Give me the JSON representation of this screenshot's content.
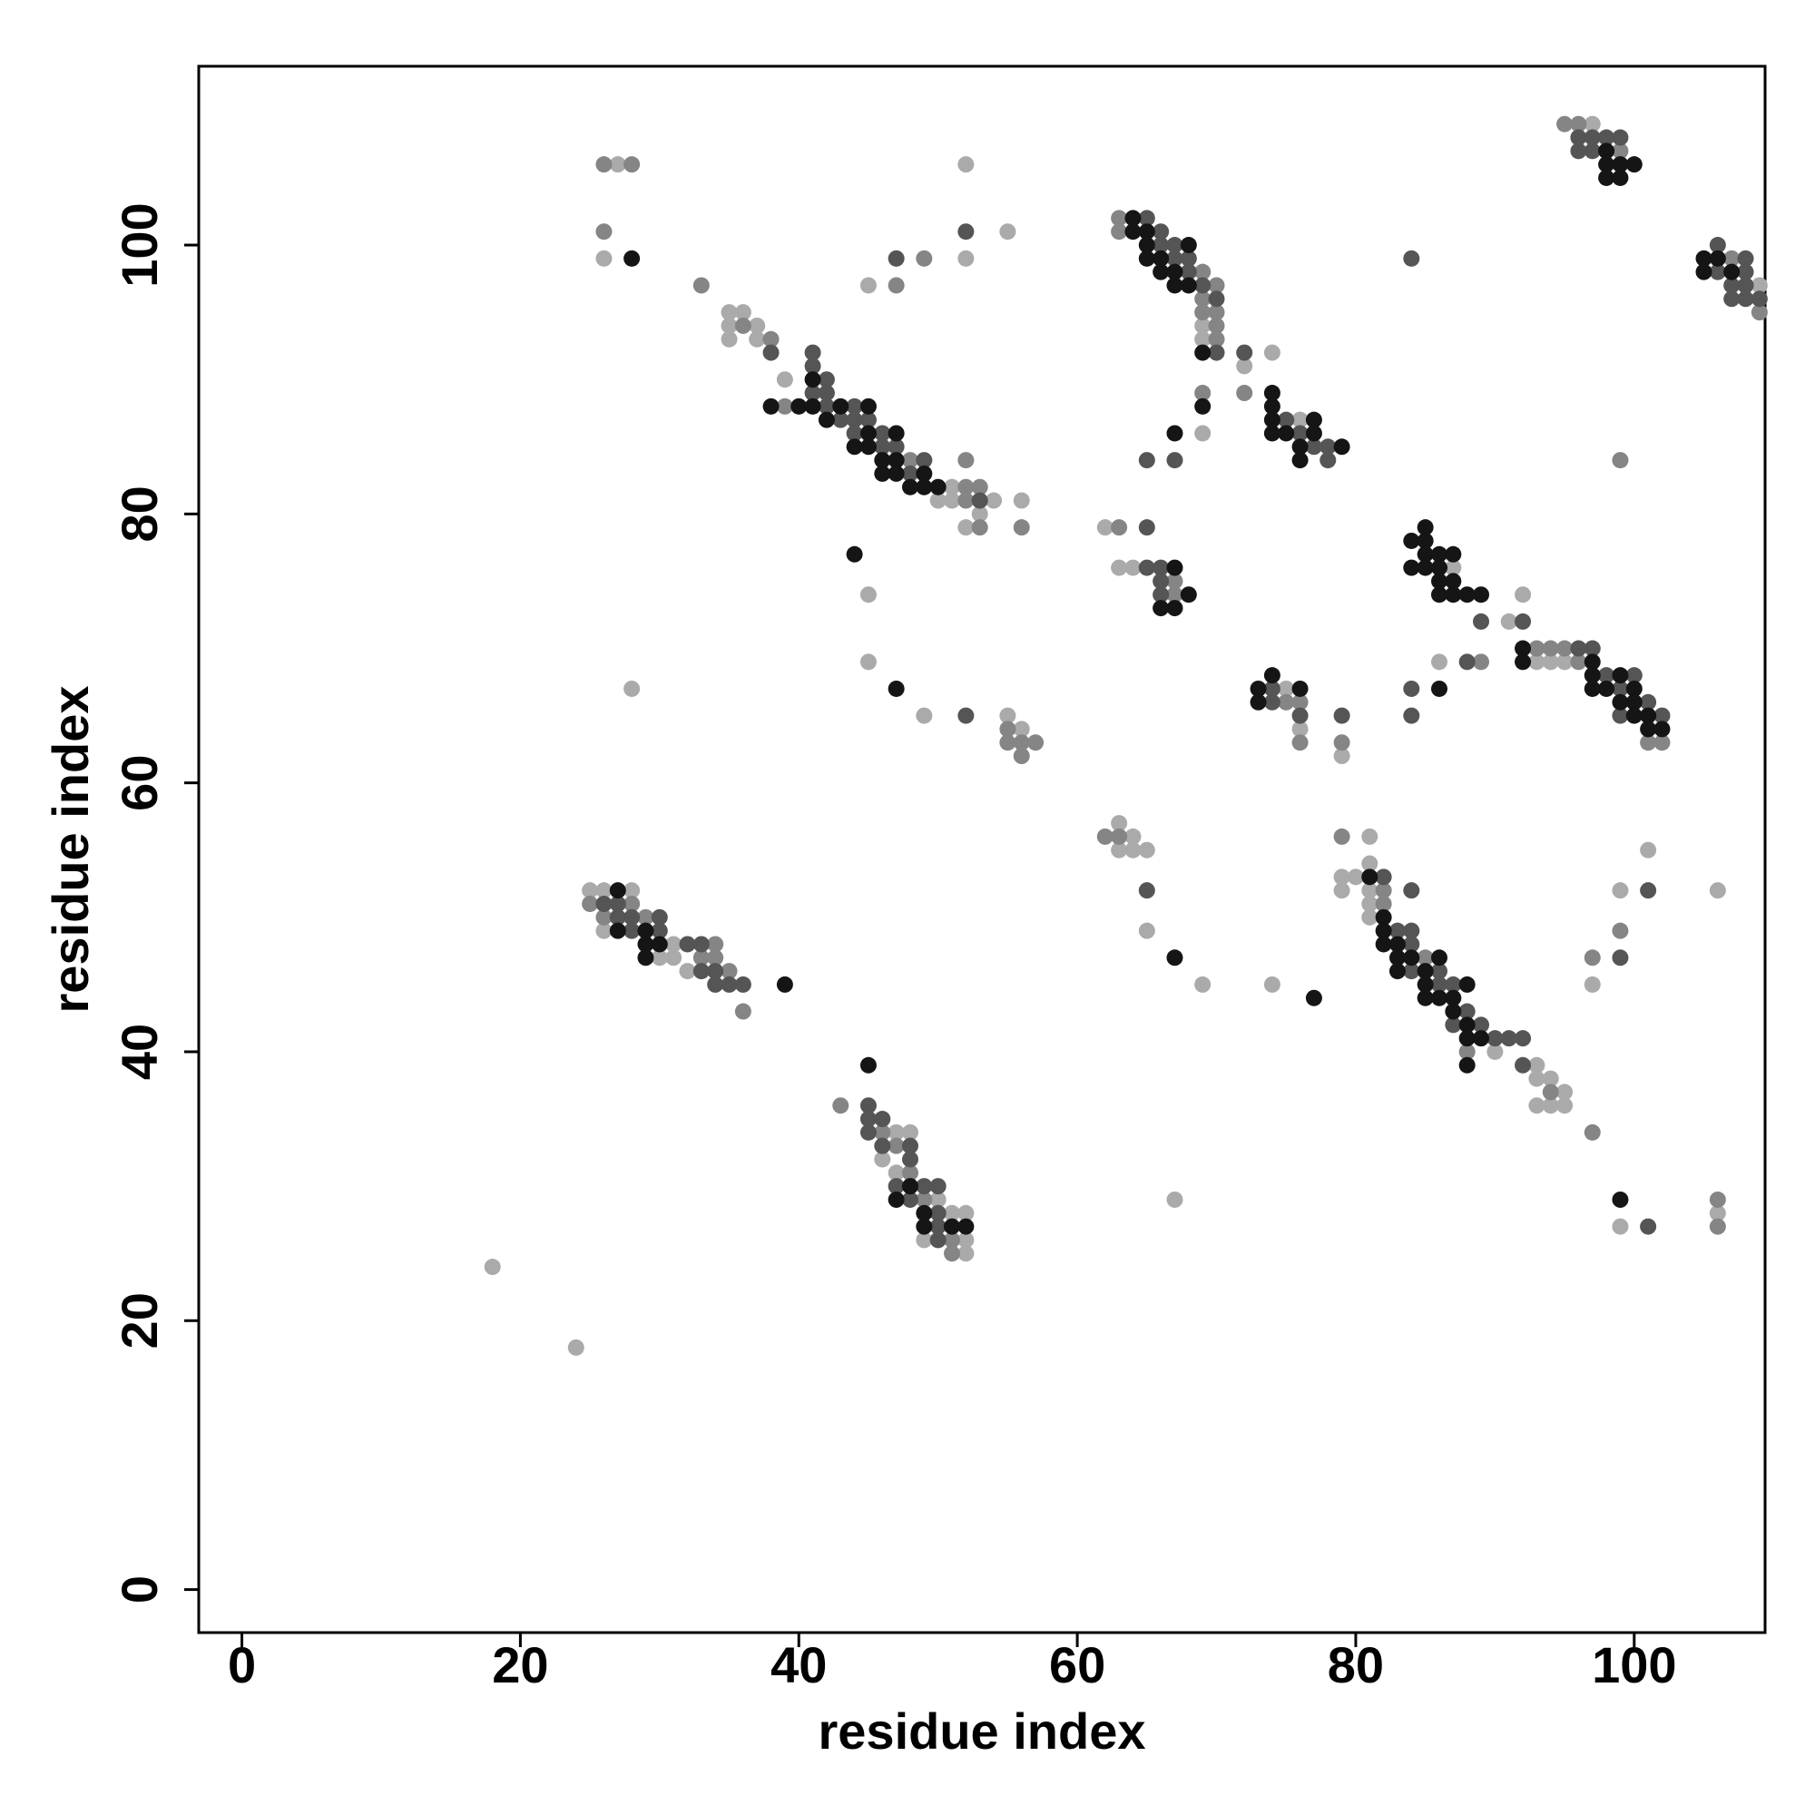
{
  "chart_data": {
    "type": "scatter",
    "x_label": "residue index",
    "y_label": "residue index",
    "xlim": [
      -3.1,
      109.4
    ],
    "ylim": [
      -3.2,
      113.3
    ],
    "xticks": [
      0,
      20,
      40,
      60,
      80,
      100
    ],
    "yticks": [
      0,
      20,
      40,
      60,
      80,
      100
    ],
    "series": [
      {
        "color": "#aaaaaa",
        "x": [
          27,
          26,
          35,
          36,
          35,
          37,
          35,
          37,
          39,
          51,
          50,
          51,
          54,
          56,
          52,
          53,
          45,
          52,
          52,
          55,
          69,
          69,
          74,
          72,
          69,
          76,
          45,
          45,
          49,
          55,
          56,
          28,
          62,
          63,
          64,
          63,
          64,
          63,
          64,
          65,
          65,
          69,
          74,
          75,
          76,
          79,
          87,
          91,
          92,
          86,
          93,
          94,
          95,
          97,
          109,
          81,
          79,
          80,
          81,
          81,
          79,
          81,
          81,
          90,
          93,
          93,
          94,
          95,
          93,
          94,
          95,
          99,
          101,
          106,
          97,
          99,
          106,
          67,
          25,
          26,
          28,
          26,
          31,
          30,
          31,
          32,
          47,
          48,
          46,
          47,
          50,
          51,
          52,
          52,
          49,
          52,
          18,
          24
        ],
        "values": [
          106,
          99,
          95,
          95,
          94,
          94,
          93,
          93,
          90,
          82,
          81,
          81,
          81,
          81,
          79,
          80,
          97,
          99,
          106,
          101,
          94,
          93,
          92,
          91,
          86,
          87,
          74,
          69,
          65,
          65,
          64,
          67,
          79,
          76,
          76,
          57,
          56,
          55,
          55,
          55,
          49,
          45,
          45,
          67,
          64,
          62,
          76,
          72,
          74,
          69,
          69,
          69,
          69,
          109,
          97,
          56,
          53,
          53,
          54,
          52,
          52,
          51,
          50,
          40,
          39,
          38,
          38,
          37,
          36,
          36,
          36,
          52,
          55,
          52,
          45,
          27,
          28,
          29,
          52,
          52,
          52,
          49,
          48,
          47,
          47,
          46,
          34,
          34,
          32,
          31,
          29,
          28,
          28,
          26,
          26,
          25,
          24,
          18
        ]
      },
      {
        "color": "#858585",
        "x": [
          26,
          28,
          26,
          33,
          36,
          38,
          39,
          52,
          53,
          52,
          52,
          53,
          56,
          47,
          49,
          63,
          63,
          69,
          70,
          69,
          69,
          70,
          70,
          70,
          69,
          72,
          99,
          55,
          55,
          56,
          57,
          56,
          63,
          67,
          67,
          62,
          63,
          75,
          76,
          76,
          79,
          89,
          93,
          94,
          95,
          96,
          101,
          102,
          95,
          96,
          99,
          107,
          109,
          79,
          82,
          82,
          85,
          88,
          94,
          97,
          97,
          99,
          106,
          106,
          25,
          28,
          26,
          29,
          34,
          33,
          34,
          35,
          36,
          43,
          46,
          47,
          48,
          49,
          51,
          51,
          48
        ],
        "values": [
          106,
          106,
          101,
          97,
          94,
          93,
          88,
          82,
          82,
          81,
          84,
          79,
          79,
          97,
          99,
          102,
          101,
          98,
          97,
          96,
          95,
          95,
          94,
          93,
          89,
          89,
          84,
          64,
          63,
          63,
          63,
          62,
          79,
          75,
          74,
          56,
          56,
          66,
          66,
          63,
          63,
          69,
          70,
          70,
          70,
          69,
          63,
          63,
          109,
          109,
          107,
          99,
          95,
          56,
          52,
          51,
          47,
          40,
          37,
          34,
          47,
          49,
          29,
          27,
          51,
          51,
          50,
          50,
          48,
          47,
          47,
          46,
          43,
          36,
          34,
          33,
          31,
          29,
          26,
          25,
          84
        ]
      },
      {
        "color": "#555555",
        "x": [
          38,
          41,
          41,
          42,
          41,
          42,
          42,
          44,
          43,
          44,
          45,
          44,
          46,
          46,
          47,
          49,
          48,
          53,
          47,
          52,
          65,
          66,
          66,
          67,
          67,
          68,
          68,
          69,
          70,
          70,
          72,
          75,
          76,
          77,
          78,
          78,
          65,
          67,
          84,
          52,
          65,
          65,
          66,
          66,
          66,
          65,
          74,
          74,
          76,
          79,
          89,
          92,
          88,
          84,
          84,
          96,
          97,
          98,
          100,
          99,
          101,
          99,
          102,
          96,
          97,
          98,
          99,
          96,
          97,
          106,
          108,
          106,
          108,
          107,
          108,
          107,
          108,
          109,
          82,
          84,
          83,
          84,
          84,
          84,
          86,
          86,
          87,
          88,
          87,
          89,
          90,
          91,
          92,
          92,
          99,
          101,
          101,
          26,
          27,
          27,
          28,
          30,
          28,
          30,
          32,
          33,
          33,
          34,
          34,
          35,
          36,
          45,
          45,
          46,
          45,
          48,
          46,
          48,
          47,
          49,
          50,
          48,
          50,
          50,
          50
        ],
        "values": [
          92,
          92,
          91,
          90,
          89,
          89,
          88,
          88,
          87,
          87,
          87,
          86,
          86,
          85,
          85,
          84,
          83,
          81,
          99,
          101,
          102,
          101,
          100,
          100,
          99,
          99,
          98,
          97,
          96,
          92,
          92,
          87,
          86,
          85,
          85,
          84,
          84,
          84,
          99,
          65,
          79,
          76,
          76,
          75,
          74,
          52,
          67,
          66,
          65,
          65,
          72,
          72,
          69,
          67,
          65,
          70,
          70,
          68,
          68,
          67,
          66,
          65,
          65,
          108,
          108,
          108,
          108,
          107,
          107,
          98,
          98,
          100,
          99,
          97,
          97,
          96,
          96,
          96,
          53,
          52,
          49,
          49,
          48,
          46,
          46,
          45,
          45,
          43,
          42,
          42,
          41,
          41,
          41,
          39,
          47,
          52,
          27,
          51,
          51,
          50,
          50,
          50,
          49,
          49,
          48,
          48,
          46,
          46,
          45,
          45,
          45,
          36,
          35,
          35,
          34,
          33,
          33,
          32,
          30,
          30,
          30,
          29,
          28,
          27,
          26
        ]
      },
      {
        "color": "#151515",
        "x": [
          28,
          41,
          38,
          40,
          41,
          43,
          45,
          42,
          45,
          47,
          44,
          45,
          46,
          47,
          46,
          47,
          49,
          48,
          49,
          50,
          64,
          64,
          65,
          65,
          68,
          65,
          66,
          66,
          67,
          67,
          68,
          69,
          69,
          74,
          74,
          74,
          77,
          74,
          75,
          77,
          76,
          79,
          76,
          67,
          44,
          47,
          67,
          68,
          66,
          67,
          67,
          77,
          73,
          73,
          74,
          76,
          84,
          85,
          85,
          84,
          85,
          86,
          87,
          85,
          86,
          86,
          87,
          86,
          87,
          88,
          89,
          86,
          92,
          92,
          97,
          97,
          99,
          97,
          98,
          100,
          99,
          100,
          100,
          101,
          101,
          102,
          98,
          98,
          99,
          100,
          98,
          99,
          105,
          106,
          105,
          107,
          81,
          82,
          82,
          82,
          83,
          83,
          84,
          86,
          83,
          85,
          85,
          88,
          85,
          86,
          87,
          87,
          88,
          88,
          89,
          88,
          99,
          27,
          27,
          29,
          29,
          30,
          29,
          39,
          45,
          48,
          47,
          49,
          49,
          51,
          52
        ],
        "values": [
          99,
          90,
          88,
          88,
          88,
          88,
          88,
          87,
          86,
          86,
          85,
          85,
          84,
          84,
          83,
          83,
          83,
          82,
          82,
          82,
          102,
          101,
          101,
          100,
          100,
          99,
          99,
          98,
          98,
          97,
          97,
          92,
          88,
          89,
          88,
          87,
          87,
          86,
          86,
          86,
          85,
          85,
          84,
          86,
          77,
          67,
          76,
          74,
          73,
          73,
          47,
          44,
          67,
          66,
          68,
          67,
          78,
          79,
          78,
          76,
          77,
          77,
          77,
          76,
          76,
          75,
          75,
          74,
          74,
          74,
          74,
          67,
          70,
          69,
          69,
          68,
          68,
          67,
          67,
          67,
          66,
          66,
          65,
          65,
          64,
          64,
          107,
          106,
          106,
          106,
          105,
          105,
          99,
          99,
          98,
          98,
          53,
          50,
          49,
          48,
          48,
          47,
          47,
          47,
          46,
          46,
          45,
          45,
          44,
          44,
          44,
          43,
          42,
          41,
          41,
          39,
          29,
          52,
          49,
          49,
          48,
          48,
          47,
          45,
          39,
          30,
          29,
          28,
          27,
          27,
          27
        ]
      }
    ]
  }
}
